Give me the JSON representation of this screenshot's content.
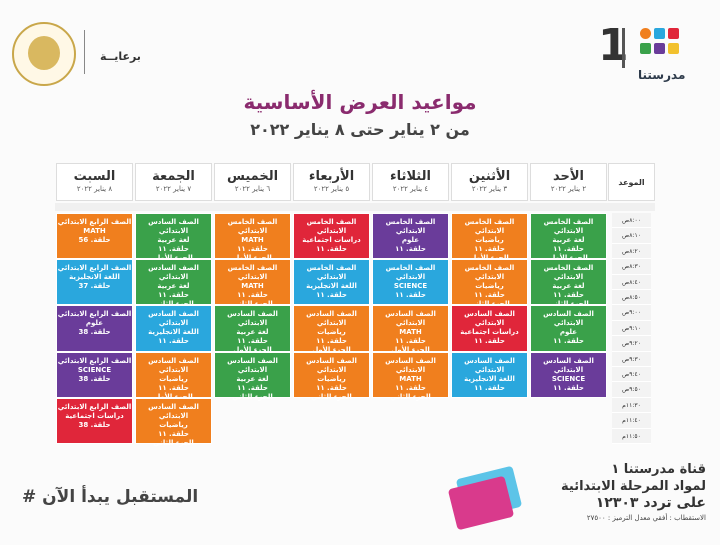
{
  "header": {
    "sponsor_label": "برعايــة",
    "brand_number": "1",
    "brand_name": "مدرستنا",
    "title": "مواعيد العرض الأساسية",
    "subtitle": "من ٢ يناير حتى ٨ يناير ٢٠٢٢"
  },
  "columns": [
    {
      "day": "الموعد",
      "date": ""
    },
    {
      "day": "الأحد",
      "date": "٢ يناير ٢٠٢٢"
    },
    {
      "day": "الأثنين",
      "date": "٣ يناير ٢٠٢٢"
    },
    {
      "day": "الثلاثاء",
      "date": "٤ يناير ٢٠٢٢"
    },
    {
      "day": "الأربعاء",
      "date": "٥ يناير ٢٠٢٢"
    },
    {
      "day": "الخميس",
      "date": "٦ يناير ٢٠٢٢"
    },
    {
      "day": "الجمعة",
      "date": "٧ يناير ٢٠٢٢"
    },
    {
      "day": "السبت",
      "date": "٨ يناير ٢٠٢٢"
    }
  ],
  "times": [
    "٨:٠٠ص",
    "٨:١٠ص",
    "٨:٢٠ص",
    "٨:٣٠ص",
    "٨:٤٠ص",
    "٨:٥٠ص",
    "٩:٠٠ص",
    "٩:١٠ص",
    "٩:٢٠ص",
    "٩:٣٠ص",
    "٩:٤٠ص",
    "٩:٥٠ص",
    "١١:٣٠م",
    "١١:٤٠م",
    "١١:٥٠م"
  ],
  "rows": [
    [
      {
        "lines": [
          "الصف الخامس الابتدائي",
          "لغة عربية",
          "حلقة. ١١",
          "الجزء الأول"
        ],
        "color": "#3aa14a"
      },
      {
        "lines": [
          "الصف الخامس الابتدائي",
          "رياضيات",
          "حلقة. ١١",
          "الجزء الأول"
        ],
        "color": "#f07f1e"
      },
      {
        "lines": [
          "الصف الخامس الابتدائي",
          "علوم",
          "حلقة. ١١"
        ],
        "color": "#6a3c9a"
      },
      {
        "lines": [
          "الصف الخامس الابتدائي",
          "دراسات اجتماعية",
          "حلقة. ١١"
        ],
        "color": "#e0263a"
      },
      {
        "lines": [
          "الصف الخامس الابتدائي",
          "MATH",
          "حلقة. ١١",
          "الجزء الأول"
        ],
        "color": "#f07f1e"
      },
      {
        "lines": [
          "الصف السادس الابتدائي",
          "لغة عربية",
          "حلقة. ١١",
          "الجزء الأول"
        ],
        "color": "#3aa14a"
      },
      {
        "lines": [
          "الصف الرابع الابتدائي",
          "MATH",
          "حلقة. 56"
        ],
        "color": "#f07f1e"
      }
    ],
    [
      {
        "lines": [
          "الصف الخامس الابتدائي",
          "لغة عربية",
          "حلقة. ١١",
          "الجزء الثاني"
        ],
        "color": "#3aa14a"
      },
      {
        "lines": [
          "الصف الخامس الابتدائي",
          "رياضيات",
          "حلقة. ١١",
          "الجزء الثاني"
        ],
        "color": "#f07f1e"
      },
      {
        "lines": [
          "الصف الخامس الابتدائي",
          "SCIENCE",
          "حلقة. ١١"
        ],
        "color": "#2aa7dd"
      },
      {
        "lines": [
          "الصف الخامس الابتدائي",
          "اللغة الانجليزية",
          "حلقة. ١١"
        ],
        "color": "#2aa7dd"
      },
      {
        "lines": [
          "الصف الخامس الابتدائي",
          "MATH",
          "حلقة. ١١",
          "الجزء الثاني"
        ],
        "color": "#f07f1e"
      },
      {
        "lines": [
          "الصف السادس الابتدائي",
          "لغة عربية",
          "حلقة. ١١",
          "الجزء الثاني"
        ],
        "color": "#3aa14a"
      },
      {
        "lines": [
          "الصف الرابع الابتدائي",
          "اللغة الانجليزية",
          "حلقة. 37"
        ],
        "color": "#2aa7dd"
      }
    ],
    [
      {
        "lines": [
          "الصف السادس الابتدائي",
          "علوم",
          "حلقة. ١١"
        ],
        "color": "#3aa14a"
      },
      {
        "lines": [
          "الصف السادس الابتدائي",
          "دراسات اجتماعية",
          "حلقة. ١١"
        ],
        "color": "#e0263a"
      },
      {
        "lines": [
          "الصف السادس الابتدائي",
          "MATH",
          "حلقة. ١١",
          "الجزء الأول"
        ],
        "color": "#f07f1e"
      },
      {
        "lines": [
          "الصف السادس الابتدائي",
          "رياضيات",
          "حلقة. ١١",
          "الجزء الأول"
        ],
        "color": "#f07f1e"
      },
      {
        "lines": [
          "الصف السادس الابتدائي",
          "لغة عربية",
          "حلقة. ١١",
          "الجزء الأول"
        ],
        "color": "#3aa14a"
      },
      {
        "lines": [
          "الصف السادس الابتدائي",
          "اللغة الانجليزية",
          "حلقة. ١١"
        ],
        "color": "#2aa7dd"
      },
      {
        "lines": [
          "الصف الرابع الابتدائي",
          "علوم",
          "حلقة. 38"
        ],
        "color": "#6a3c9a"
      }
    ],
    [
      {
        "lines": [
          "الصف السادس الابتدائي",
          "SCIENCE",
          "حلقة. ١١"
        ],
        "color": "#6a3c9a"
      },
      {
        "lines": [
          "الصف السادس الابتدائي",
          "اللغة الانجليزية",
          "حلقة. ١١"
        ],
        "color": "#2aa7dd"
      },
      {
        "lines": [
          "الصف السادس الابتدائي",
          "MATH",
          "حلقة. ١١",
          "الجزء الثاني"
        ],
        "color": "#f07f1e"
      },
      {
        "lines": [
          "الصف السادس الابتدائي",
          "رياضيات",
          "حلقة. ١١",
          "الجزء الثاني"
        ],
        "color": "#f07f1e"
      },
      {
        "lines": [
          "الصف السادس الابتدائي",
          "لغة عربية",
          "حلقة. ١١",
          "الجزء الثاني"
        ],
        "color": "#3aa14a"
      },
      {
        "lines": [
          "الصف السادس الابتدائي",
          "رياضيات",
          "حلقة. ١١",
          "الجزء الأول"
        ],
        "color": "#f07f1e"
      },
      {
        "lines": [
          "الصف الرابع الابتدائي",
          "SCIENCE",
          "حلقة. 38"
        ],
        "color": "#6a3c9a"
      }
    ],
    [
      null,
      null,
      null,
      null,
      null,
      {
        "lines": [
          "الصف السادس الابتدائي",
          "رياضيات",
          "حلقة. ١١",
          "الجزء الثاني"
        ],
        "color": "#f07f1e"
      },
      {
        "lines": [
          "الصف الرابع الابتدائي",
          "دراسات اجتماعية",
          "حلقة. 38"
        ],
        "color": "#e0263a"
      }
    ]
  ],
  "footer": {
    "channel_line1": "قناة مدرستنا ١",
    "channel_line2": "لمواد المرحلة الابتدائية",
    "channel_line3": "على تردد ١٢٣٠٣",
    "channel_line4": "الاستقطاب : أفقي معدل الترميز : ٢٧٥٠٠",
    "hashtag": "# المستقبل يبدأ الآن"
  }
}
